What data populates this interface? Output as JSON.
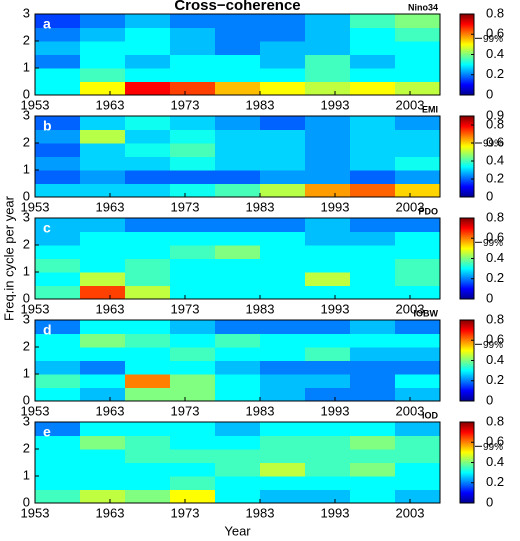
{
  "chart_data": [
    {
      "type": "heatmap",
      "title": "Cross−coherence",
      "panel": "a",
      "index": "Nino34",
      "xbins": [
        1953,
        1959,
        1965,
        1971,
        1977,
        1983,
        1989,
        1995,
        2001,
        2007
      ],
      "ybins": [
        0,
        0.5,
        1,
        1.5,
        2,
        2.5,
        3
      ],
      "values": [
        [
          0.3,
          0.5,
          0.7,
          0.65,
          0.55,
          0.5,
          0.45,
          0.5,
          0.45
        ],
        [
          0.3,
          0.35,
          0.3,
          0.3,
          0.3,
          0.3,
          0.35,
          0.3,
          0.3
        ],
        [
          0.2,
          0.3,
          0.25,
          0.3,
          0.3,
          0.25,
          0.35,
          0.25,
          0.3
        ],
        [
          0.25,
          0.3,
          0.3,
          0.25,
          0.2,
          0.25,
          0.25,
          0.3,
          0.3
        ],
        [
          0.2,
          0.25,
          0.3,
          0.25,
          0.2,
          0.2,
          0.25,
          0.3,
          0.35
        ],
        [
          0.15,
          0.2,
          0.25,
          0.2,
          0.2,
          0.2,
          0.25,
          0.35,
          0.4
        ]
      ],
      "xlim": [
        1953,
        2007
      ],
      "xticks": [
        1953,
        1963,
        1973,
        1983,
        1993,
        2003
      ],
      "ylim": [
        0,
        3
      ],
      "yticks": [
        0,
        1,
        2,
        3
      ],
      "clim": [
        0,
        0.8
      ],
      "cticks": [
        0,
        0.2,
        0.4,
        0.6,
        0.8
      ],
      "significance": {
        "value": 0.56,
        "label": "99%"
      },
      "colormap": "jet"
    },
    {
      "type": "heatmap",
      "panel": "b",
      "index": "EMI",
      "xbins": [
        1953,
        1959,
        1965,
        1971,
        1977,
        1983,
        1989,
        1995,
        2001,
        2007
      ],
      "ybins": [
        0,
        0.5,
        1,
        1.5,
        2,
        2.5,
        3
      ],
      "values": [
        [
          0.3,
          0.3,
          0.3,
          0.35,
          0.4,
          0.5,
          0.65,
          0.7,
          0.6
        ],
        [
          0.2,
          0.25,
          0.2,
          0.2,
          0.2,
          0.25,
          0.25,
          0.2,
          0.25
        ],
        [
          0.25,
          0.3,
          0.3,
          0.35,
          0.3,
          0.3,
          0.25,
          0.3,
          0.35
        ],
        [
          0.2,
          0.3,
          0.35,
          0.4,
          0.3,
          0.3,
          0.25,
          0.3,
          0.3
        ],
        [
          0.25,
          0.5,
          0.3,
          0.35,
          0.3,
          0.3,
          0.25,
          0.3,
          0.3
        ],
        [
          0.2,
          0.3,
          0.35,
          0.3,
          0.25,
          0.2,
          0.25,
          0.3,
          0.25
        ]
      ],
      "xlim": [
        1953,
        2007
      ],
      "xticks": [
        1953,
        1963,
        1973,
        1983,
        1993,
        2003
      ],
      "ylim": [
        0,
        3
      ],
      "yticks": [
        0,
        1,
        2,
        3
      ],
      "clim": [
        0,
        0.9
      ],
      "cticks": [
        0,
        0.2,
        0.4,
        0.6,
        0.8,
        0.9
      ],
      "significance": {
        "value": 0.6,
        "label": "99%"
      },
      "colormap": "jet"
    },
    {
      "type": "heatmap",
      "panel": "c",
      "index": "PDO",
      "ylabel": "Freq.in cycle per year",
      "xbins": [
        1953,
        1959,
        1965,
        1971,
        1977,
        1983,
        1989,
        1995,
        2001,
        2007
      ],
      "ybins": [
        0,
        0.5,
        1,
        1.5,
        2,
        2.5,
        3
      ],
      "values": [
        [
          0.35,
          0.65,
          0.45,
          0.3,
          0.3,
          0.3,
          0.3,
          0.3,
          0.3
        ],
        [
          0.3,
          0.45,
          0.35,
          0.3,
          0.3,
          0.3,
          0.45,
          0.3,
          0.35
        ],
        [
          0.35,
          0.3,
          0.35,
          0.3,
          0.3,
          0.3,
          0.3,
          0.3,
          0.35
        ],
        [
          0.3,
          0.3,
          0.3,
          0.35,
          0.4,
          0.3,
          0.3,
          0.3,
          0.3
        ],
        [
          0.25,
          0.3,
          0.3,
          0.3,
          0.3,
          0.3,
          0.25,
          0.25,
          0.3
        ],
        [
          0.25,
          0.25,
          0.2,
          0.2,
          0.2,
          0.2,
          0.25,
          0.2,
          0.2
        ]
      ],
      "xlim": [
        1953,
        2007
      ],
      "xticks": [
        1953,
        1963,
        1973,
        1983,
        1993,
        2003
      ],
      "ylim": [
        0,
        3
      ],
      "yticks": [
        0,
        1,
        2,
        3
      ],
      "clim": [
        0,
        0.8
      ],
      "cticks": [
        0,
        0.2,
        0.4,
        0.6,
        0.8
      ],
      "significance": {
        "value": 0.56,
        "label": "99%"
      },
      "colormap": "jet"
    },
    {
      "type": "heatmap",
      "panel": "d",
      "index": "IOBW",
      "xbins": [
        1953,
        1959,
        1965,
        1971,
        1977,
        1983,
        1989,
        1995,
        2001,
        2007
      ],
      "ybins": [
        0,
        0.5,
        1,
        1.5,
        2,
        2.5,
        3
      ],
      "values": [
        [
          0.3,
          0.25,
          0.4,
          0.4,
          0.3,
          0.25,
          0.2,
          0.2,
          0.25
        ],
        [
          0.35,
          0.3,
          0.6,
          0.4,
          0.3,
          0.25,
          0.25,
          0.2,
          0.3
        ],
        [
          0.25,
          0.2,
          0.3,
          0.3,
          0.25,
          0.2,
          0.2,
          0.2,
          0.2
        ],
        [
          0.3,
          0.3,
          0.3,
          0.35,
          0.3,
          0.3,
          0.35,
          0.25,
          0.25
        ],
        [
          0.3,
          0.4,
          0.35,
          0.3,
          0.35,
          0.3,
          0.3,
          0.3,
          0.3
        ],
        [
          0.2,
          0.3,
          0.3,
          0.25,
          0.2,
          0.2,
          0.2,
          0.25,
          0.2
        ]
      ],
      "xlim": [
        1953,
        2007
      ],
      "xticks": [
        1953,
        1963,
        1973,
        1983,
        1993,
        2003
      ],
      "ylim": [
        0,
        3
      ],
      "yticks": [
        0,
        1,
        2,
        3
      ],
      "clim": [
        0,
        0.8
      ],
      "cticks": [
        0,
        0.2,
        0.4,
        0.6,
        0.8
      ],
      "significance": {
        "value": 0.56,
        "label": "99%"
      },
      "colormap": "jet"
    },
    {
      "type": "heatmap",
      "panel": "e",
      "index": "IOD",
      "xlabel": "Year",
      "xbins": [
        1953,
        1959,
        1965,
        1971,
        1977,
        1983,
        1989,
        1995,
        2001,
        2007
      ],
      "ybins": [
        0,
        0.5,
        1,
        1.5,
        2,
        2.5,
        3
      ],
      "values": [
        [
          0.35,
          0.45,
          0.4,
          0.5,
          0.3,
          0.25,
          0.25,
          0.3,
          0.25
        ],
        [
          0.3,
          0.3,
          0.3,
          0.35,
          0.3,
          0.3,
          0.3,
          0.3,
          0.3
        ],
        [
          0.3,
          0.3,
          0.3,
          0.3,
          0.35,
          0.45,
          0.35,
          0.4,
          0.3
        ],
        [
          0.3,
          0.3,
          0.35,
          0.35,
          0.35,
          0.35,
          0.35,
          0.35,
          0.35
        ],
        [
          0.3,
          0.4,
          0.35,
          0.3,
          0.3,
          0.35,
          0.35,
          0.4,
          0.35
        ],
        [
          0.2,
          0.3,
          0.3,
          0.3,
          0.25,
          0.3,
          0.3,
          0.3,
          0.25
        ]
      ],
      "xlim": [
        1953,
        2007
      ],
      "xticks": [
        1953,
        1963,
        1973,
        1983,
        1993,
        2003
      ],
      "ylim": [
        0,
        3
      ],
      "yticks": [
        0,
        1,
        2,
        3
      ],
      "clim": [
        0,
        0.8
      ],
      "cticks": [
        0,
        0.2,
        0.4,
        0.6,
        0.8
      ],
      "significance": {
        "value": 0.56,
        "label": "99%"
      },
      "colormap": "jet"
    }
  ]
}
